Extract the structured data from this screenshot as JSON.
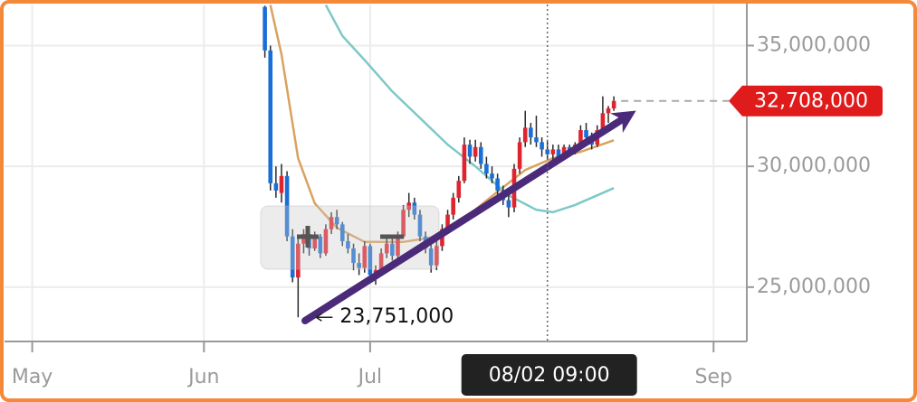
{
  "chart_data": {
    "type": "candlestick",
    "x": [
      "06/12",
      "06/13",
      "06/14",
      "06/15",
      "06/16",
      "06/17",
      "06/18",
      "06/19",
      "06/20",
      "06/21",
      "06/22",
      "06/23",
      "06/24",
      "06/25",
      "06/26",
      "06/27",
      "06/28",
      "06/29",
      "06/30",
      "07/01",
      "07/02",
      "07/03",
      "07/04",
      "07/05",
      "07/06",
      "07/07",
      "07/08",
      "07/09",
      "07/10",
      "07/11",
      "07/12",
      "07/13",
      "07/14",
      "07/15",
      "07/16",
      "07/17",
      "07/18",
      "07/19",
      "07/20",
      "07/21",
      "07/22",
      "07/23",
      "07/24",
      "07/25",
      "07/26",
      "07/27",
      "07/28",
      "07/29",
      "07/30",
      "07/31",
      "08/01",
      "08/02",
      "08/03",
      "08/04",
      "08/05",
      "08/06",
      "08/07",
      "08/08",
      "08/09",
      "08/10",
      "08/11",
      "08/12",
      "08/13",
      "08/14"
    ],
    "open": [
      36600000,
      34800000,
      29300000,
      28900000,
      29600000,
      27100000,
      25400000,
      26800000,
      27200000,
      26600000,
      27100000,
      26400000,
      27400000,
      27900000,
      27600000,
      26900000,
      26600000,
      26000000,
      25800000,
      26700000,
      25500000,
      25700000,
      26400000,
      26800000,
      26300000,
      27100000,
      28200000,
      28500000,
      28000000,
      27100000,
      26600000,
      25900000,
      26700000,
      27400000,
      28000000,
      28700000,
      29400000,
      30900000,
      30400000,
      30800000,
      30100000,
      29700000,
      29500000,
      29000000,
      28600000,
      28300000,
      29900000,
      31000000,
      31600000,
      31200000,
      31000000,
      30700000,
      30500000,
      30700000,
      30400000,
      30800000,
      30600000,
      30900000,
      31500000,
      31200000,
      30900000,
      31500000,
      32200000,
      32400000
    ],
    "high": [
      36650000,
      35000000,
      30000000,
      30100000,
      29800000,
      27400000,
      27000000,
      27400000,
      27400000,
      27300000,
      27200000,
      27600000,
      28100000,
      28200000,
      27700000,
      27200000,
      26800000,
      26400000,
      26900000,
      26800000,
      25900000,
      26600000,
      27000000,
      27000000,
      27300000,
      28400000,
      28900000,
      28700000,
      28200000,
      27300000,
      26800000,
      26900000,
      27600000,
      28200000,
      28900000,
      29600000,
      31200000,
      31100000,
      31100000,
      31000000,
      30400000,
      30000000,
      29700000,
      29200000,
      28800000,
      30100000,
      31200000,
      32300000,
      31800000,
      32100000,
      31200000,
      31100000,
      30900000,
      30900000,
      30900000,
      30900000,
      31000000,
      31700000,
      31800000,
      31400000,
      31700000,
      32900000,
      32500000,
      32900000
    ],
    "low": [
      34500000,
      29000000,
      28700000,
      28500000,
      26900000,
      25200000,
      23751000,
      26400000,
      26300000,
      26500000,
      26200000,
      26300000,
      27200000,
      27400000,
      26700000,
      26400000,
      25700000,
      25500000,
      25600000,
      25300000,
      25100000,
      25500000,
      26200000,
      26100000,
      26100000,
      27000000,
      27900000,
      27800000,
      26900000,
      26400000,
      25600000,
      25700000,
      26500000,
      27200000,
      27800000,
      28500000,
      29300000,
      30100000,
      30200000,
      29900000,
      29500000,
      29300000,
      28800000,
      28400000,
      27900000,
      28100000,
      29700000,
      30800000,
      30900000,
      30800000,
      30400000,
      30300000,
      30200000,
      30200000,
      30300000,
      30400000,
      30500000,
      30800000,
      31000000,
      30700000,
      30800000,
      31400000,
      31800000,
      32300000
    ],
    "close": [
      34800000,
      29300000,
      29000000,
      29600000,
      27100000,
      25400000,
      26800000,
      27200000,
      26600000,
      27100000,
      26400000,
      27400000,
      27900000,
      27600000,
      26900000,
      26600000,
      26000000,
      25800000,
      26700000,
      25500000,
      25700000,
      26400000,
      26800000,
      26300000,
      27100000,
      28200000,
      28500000,
      28000000,
      27100000,
      26600000,
      25900000,
      26700000,
      27400000,
      28000000,
      28700000,
      29400000,
      30900000,
      30400000,
      30800000,
      30100000,
      29700000,
      29500000,
      29000000,
      28600000,
      28300000,
      29900000,
      31000000,
      31600000,
      31200000,
      31000000,
      30700000,
      30500000,
      30700000,
      30400000,
      30800000,
      30600000,
      30900000,
      31500000,
      31200000,
      30900000,
      31500000,
      32200000,
      32400000,
      32708000
    ],
    "up_color": "#e0242f",
    "down_color": "#1a6fd6",
    "wick_color": "#2a2a2a",
    "lines": [
      {
        "color": "#d9a25f",
        "x": [
          "06/13",
          "06/15",
          "06/18",
          "06/21",
          "06/25",
          "06/30",
          "07/07",
          "07/13",
          "07/18",
          "07/24",
          "07/29",
          "08/03",
          "08/08",
          "08/14"
        ],
        "values": [
          36680000,
          34630000,
          30340000,
          28470000,
          27460000,
          26870000,
          26870000,
          27090000,
          27840000,
          28950000,
          29850000,
          30340000,
          30600000,
          31080000
        ]
      },
      {
        "color": "#7ec8c8",
        "x": [
          "06/23",
          "06/26",
          "06/30",
          "07/05",
          "07/10",
          "07/15",
          "07/20",
          "07/26",
          "07/31",
          "08/03",
          "08/07",
          "08/14"
        ],
        "values": [
          36680000,
          35400000,
          34400000,
          33100000,
          32000000,
          30900000,
          30000000,
          28800000,
          28200000,
          28100000,
          28400000,
          29100000
        ]
      }
    ],
    "xlim": [
      "04/26",
      "09/07"
    ],
    "xticks": [
      {
        "value": "05/01",
        "label": "May"
      },
      {
        "value": "06/01",
        "label": "Jun"
      },
      {
        "value": "07/01",
        "label": "Jul"
      },
      {
        "value": "09/01",
        "label": "Sep"
      }
    ],
    "ylim": [
      22750000,
      36700000
    ],
    "yticks": [
      {
        "value": 25000000,
        "label": "25,000,000"
      },
      {
        "value": 30000000,
        "label": "30,000,000"
      },
      {
        "value": 35000000,
        "label": "35,000,000"
      }
    ],
    "grid": true,
    "low_annotation": {
      "x": "06/18",
      "value": 23751000,
      "label": "23,751,000"
    },
    "last_price": {
      "value": 32708000,
      "label": "32,708,000"
    },
    "crosshair": {
      "x": "08/02",
      "label": "08/02 09:00"
    }
  }
}
